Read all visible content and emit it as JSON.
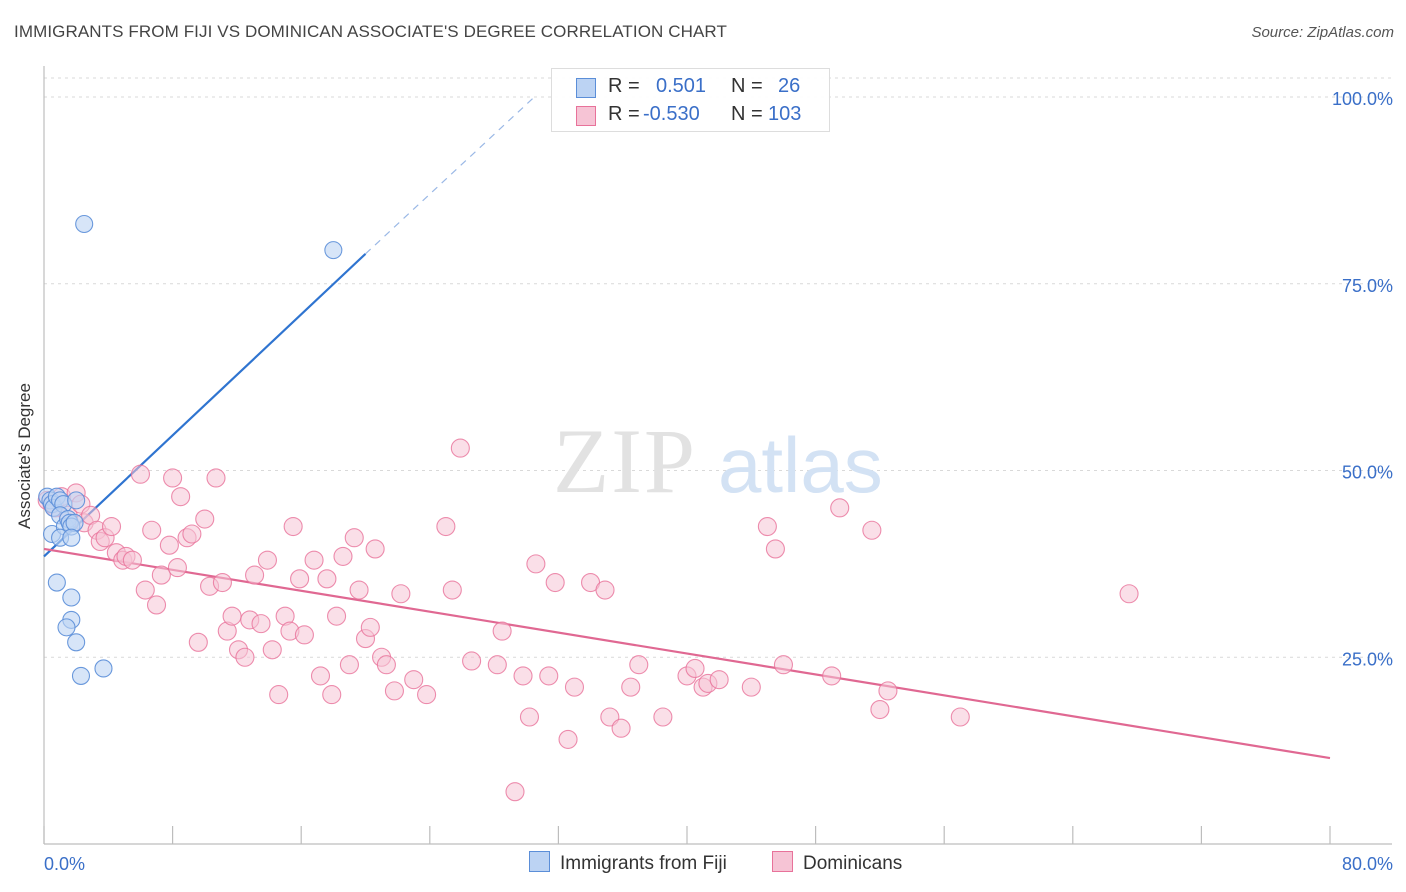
{
  "title": "IMMIGRANTS FROM FIJI VS DOMINICAN ASSOCIATE'S DEGREE CORRELATION CHART",
  "source": "Source: ZipAtlas.com",
  "watermark": {
    "zip": "ZIP",
    "atlas": "atlas"
  },
  "colors": {
    "fiji": "#5b8ed8",
    "dominican": "#e8729a",
    "fiji_fill": "#bcd3f3",
    "dominican_fill": "#f6c4d5",
    "tick_label": "#3a6fc8"
  },
  "legend_top": {
    "fiji": {
      "r_label": "R =",
      "r_value": "0.501",
      "n_label": "N =",
      "n_value": "26"
    },
    "dominican": {
      "r_label": "R =",
      "r_value": "-0.530",
      "n_label": "N =",
      "n_value": "103"
    }
  },
  "chart_data": {
    "type": "scatter",
    "xlabel": "",
    "ylabel": "Associate's Degree",
    "xlim": [
      0,
      80
    ],
    "ylim": [
      0,
      105
    ],
    "x_ticks": [
      0,
      8,
      16,
      24,
      32,
      40,
      48,
      56,
      64,
      72,
      80
    ],
    "x_tick_labels": {
      "start": "0.0%",
      "end": "80.0%"
    },
    "y_ticks": [
      25,
      50,
      75,
      100
    ],
    "y_tick_labels": [
      "25.0%",
      "50.0%",
      "75.0%",
      "100.0%"
    ],
    "grid": true,
    "legend": "bottom",
    "series": [
      {
        "name": "Immigrants from Fiji",
        "points": [
          [
            0.2,
            46.5
          ],
          [
            0.4,
            46.0
          ],
          [
            0.5,
            45.5
          ],
          [
            0.6,
            45.0
          ],
          [
            0.8,
            46.5
          ],
          [
            1.0,
            46.0
          ],
          [
            1.2,
            45.5
          ],
          [
            0.5,
            41.5
          ],
          [
            1.0,
            44.0
          ],
          [
            1.3,
            42.5
          ],
          [
            1.5,
            43.5
          ],
          [
            1.6,
            43.0
          ],
          [
            1.7,
            42.5
          ],
          [
            1.9,
            43.0
          ],
          [
            2.0,
            46.0
          ],
          [
            1.0,
            41.0
          ],
          [
            1.7,
            41.0
          ],
          [
            0.8,
            35.0
          ],
          [
            1.7,
            33.0
          ],
          [
            1.7,
            30.0
          ],
          [
            1.4,
            29.0
          ],
          [
            2.0,
            27.0
          ],
          [
            2.3,
            22.5
          ],
          [
            3.7,
            23.5
          ],
          [
            2.5,
            83.0
          ],
          [
            18.0,
            79.5
          ]
        ],
        "trend": {
          "x": [
            0,
            20
          ],
          "y": [
            38.5,
            79.0
          ],
          "dashed_to": [
            30.5,
            100.0
          ]
        }
      },
      {
        "name": "Dominicans",
        "points": [
          [
            0.2,
            46.0
          ],
          [
            0.5,
            45.5
          ],
          [
            0.7,
            45.0
          ],
          [
            1.1,
            46.5
          ],
          [
            1.5,
            44.0
          ],
          [
            2.0,
            47.0
          ],
          [
            2.3,
            45.5
          ],
          [
            2.5,
            43.0
          ],
          [
            2.9,
            44.0
          ],
          [
            3.3,
            42.0
          ],
          [
            3.5,
            40.5
          ],
          [
            3.8,
            41.0
          ],
          [
            4.2,
            42.5
          ],
          [
            4.5,
            39.0
          ],
          [
            4.9,
            38.0
          ],
          [
            5.1,
            38.5
          ],
          [
            5.5,
            38.0
          ],
          [
            6.0,
            49.5
          ],
          [
            6.3,
            34.0
          ],
          [
            6.7,
            42.0
          ],
          [
            7.0,
            32.0
          ],
          [
            7.3,
            36.0
          ],
          [
            7.8,
            40.0
          ],
          [
            8.0,
            49.0
          ],
          [
            8.3,
            37.0
          ],
          [
            8.5,
            46.5
          ],
          [
            8.9,
            41.0
          ],
          [
            9.2,
            41.5
          ],
          [
            9.6,
            27.0
          ],
          [
            10.0,
            43.5
          ],
          [
            10.3,
            34.5
          ],
          [
            10.7,
            49.0
          ],
          [
            11.1,
            35.0
          ],
          [
            11.4,
            28.5
          ],
          [
            11.7,
            30.5
          ],
          [
            12.1,
            26.0
          ],
          [
            12.5,
            25.0
          ],
          [
            12.8,
            30.0
          ],
          [
            13.1,
            36.0
          ],
          [
            13.5,
            29.5
          ],
          [
            13.9,
            38.0
          ],
          [
            14.2,
            26.0
          ],
          [
            14.6,
            20.0
          ],
          [
            15.0,
            30.5
          ],
          [
            15.3,
            28.5
          ],
          [
            15.5,
            42.5
          ],
          [
            15.9,
            35.5
          ],
          [
            16.2,
            28.0
          ],
          [
            16.8,
            38.0
          ],
          [
            17.2,
            22.5
          ],
          [
            17.6,
            35.5
          ],
          [
            17.9,
            20.0
          ],
          [
            18.2,
            30.5
          ],
          [
            18.6,
            38.5
          ],
          [
            19.0,
            24.0
          ],
          [
            19.3,
            41.0
          ],
          [
            19.6,
            34.0
          ],
          [
            20.0,
            27.5
          ],
          [
            20.3,
            29.0
          ],
          [
            20.6,
            39.5
          ],
          [
            21.0,
            25.0
          ],
          [
            21.3,
            24.0
          ],
          [
            21.8,
            20.5
          ],
          [
            22.2,
            33.5
          ],
          [
            23.0,
            22.0
          ],
          [
            23.8,
            20.0
          ],
          [
            25.0,
            42.5
          ],
          [
            25.4,
            34.0
          ],
          [
            25.9,
            53.0
          ],
          [
            26.6,
            24.5
          ],
          [
            28.2,
            24.0
          ],
          [
            28.5,
            28.5
          ],
          [
            29.3,
            7.0
          ],
          [
            29.8,
            22.5
          ],
          [
            30.2,
            17.0
          ],
          [
            30.6,
            37.5
          ],
          [
            31.4,
            22.5
          ],
          [
            31.8,
            35.0
          ],
          [
            32.6,
            14.0
          ],
          [
            33.0,
            21.0
          ],
          [
            34.0,
            35.0
          ],
          [
            34.9,
            34.0
          ],
          [
            35.2,
            17.0
          ],
          [
            35.9,
            15.5
          ],
          [
            36.5,
            21.0
          ],
          [
            37.0,
            24.0
          ],
          [
            38.5,
            17.0
          ],
          [
            40.0,
            22.5
          ],
          [
            40.5,
            23.5
          ],
          [
            41.0,
            21.0
          ],
          [
            41.3,
            21.5
          ],
          [
            42.0,
            22.0
          ],
          [
            44.0,
            21.0
          ],
          [
            45.0,
            42.5
          ],
          [
            45.5,
            39.5
          ],
          [
            46.0,
            24.0
          ],
          [
            49.0,
            22.5
          ],
          [
            49.5,
            45.0
          ],
          [
            51.5,
            42.0
          ],
          [
            52.0,
            18.0
          ],
          [
            52.5,
            20.5
          ],
          [
            57.0,
            17.0
          ],
          [
            67.5,
            33.5
          ]
        ],
        "trend": {
          "x": [
            0,
            80
          ],
          "y": [
            39.5,
            11.5
          ]
        }
      }
    ]
  }
}
